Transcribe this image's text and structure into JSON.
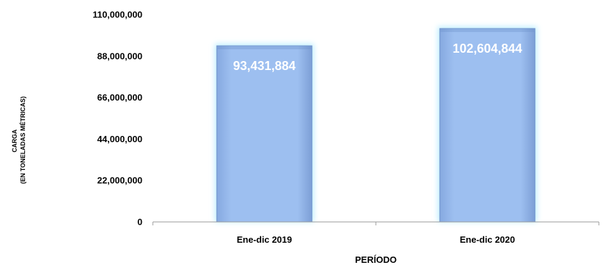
{
  "chart_data": {
    "type": "bar",
    "categories": [
      "Ene-dic 2019",
      "Ene-dic 2020"
    ],
    "values": [
      93431884,
      102604844
    ],
    "value_labels": [
      "93,431,884",
      "102,604,844"
    ],
    "xlabel": "PERÍODO",
    "ylabel_lines": [
      "CARGA",
      "(EN TONELADAS MÉTRICAS)"
    ],
    "ylim": [
      0,
      110000000
    ],
    "yticks": [
      0,
      22000000,
      44000000,
      66000000,
      88000000,
      110000000
    ],
    "ytick_labels": [
      "0",
      "22,000,000",
      "44,000,000",
      "66,000,000",
      "88,000,000",
      "110,000,000"
    ],
    "grid": false,
    "legend": "none",
    "colors": {
      "bar_fill": "#97b9ec",
      "bar_edge": "#6b8fc8",
      "bar_glow": "#bfefff",
      "label_text": "#ffffff",
      "axis": "#999999"
    }
  }
}
